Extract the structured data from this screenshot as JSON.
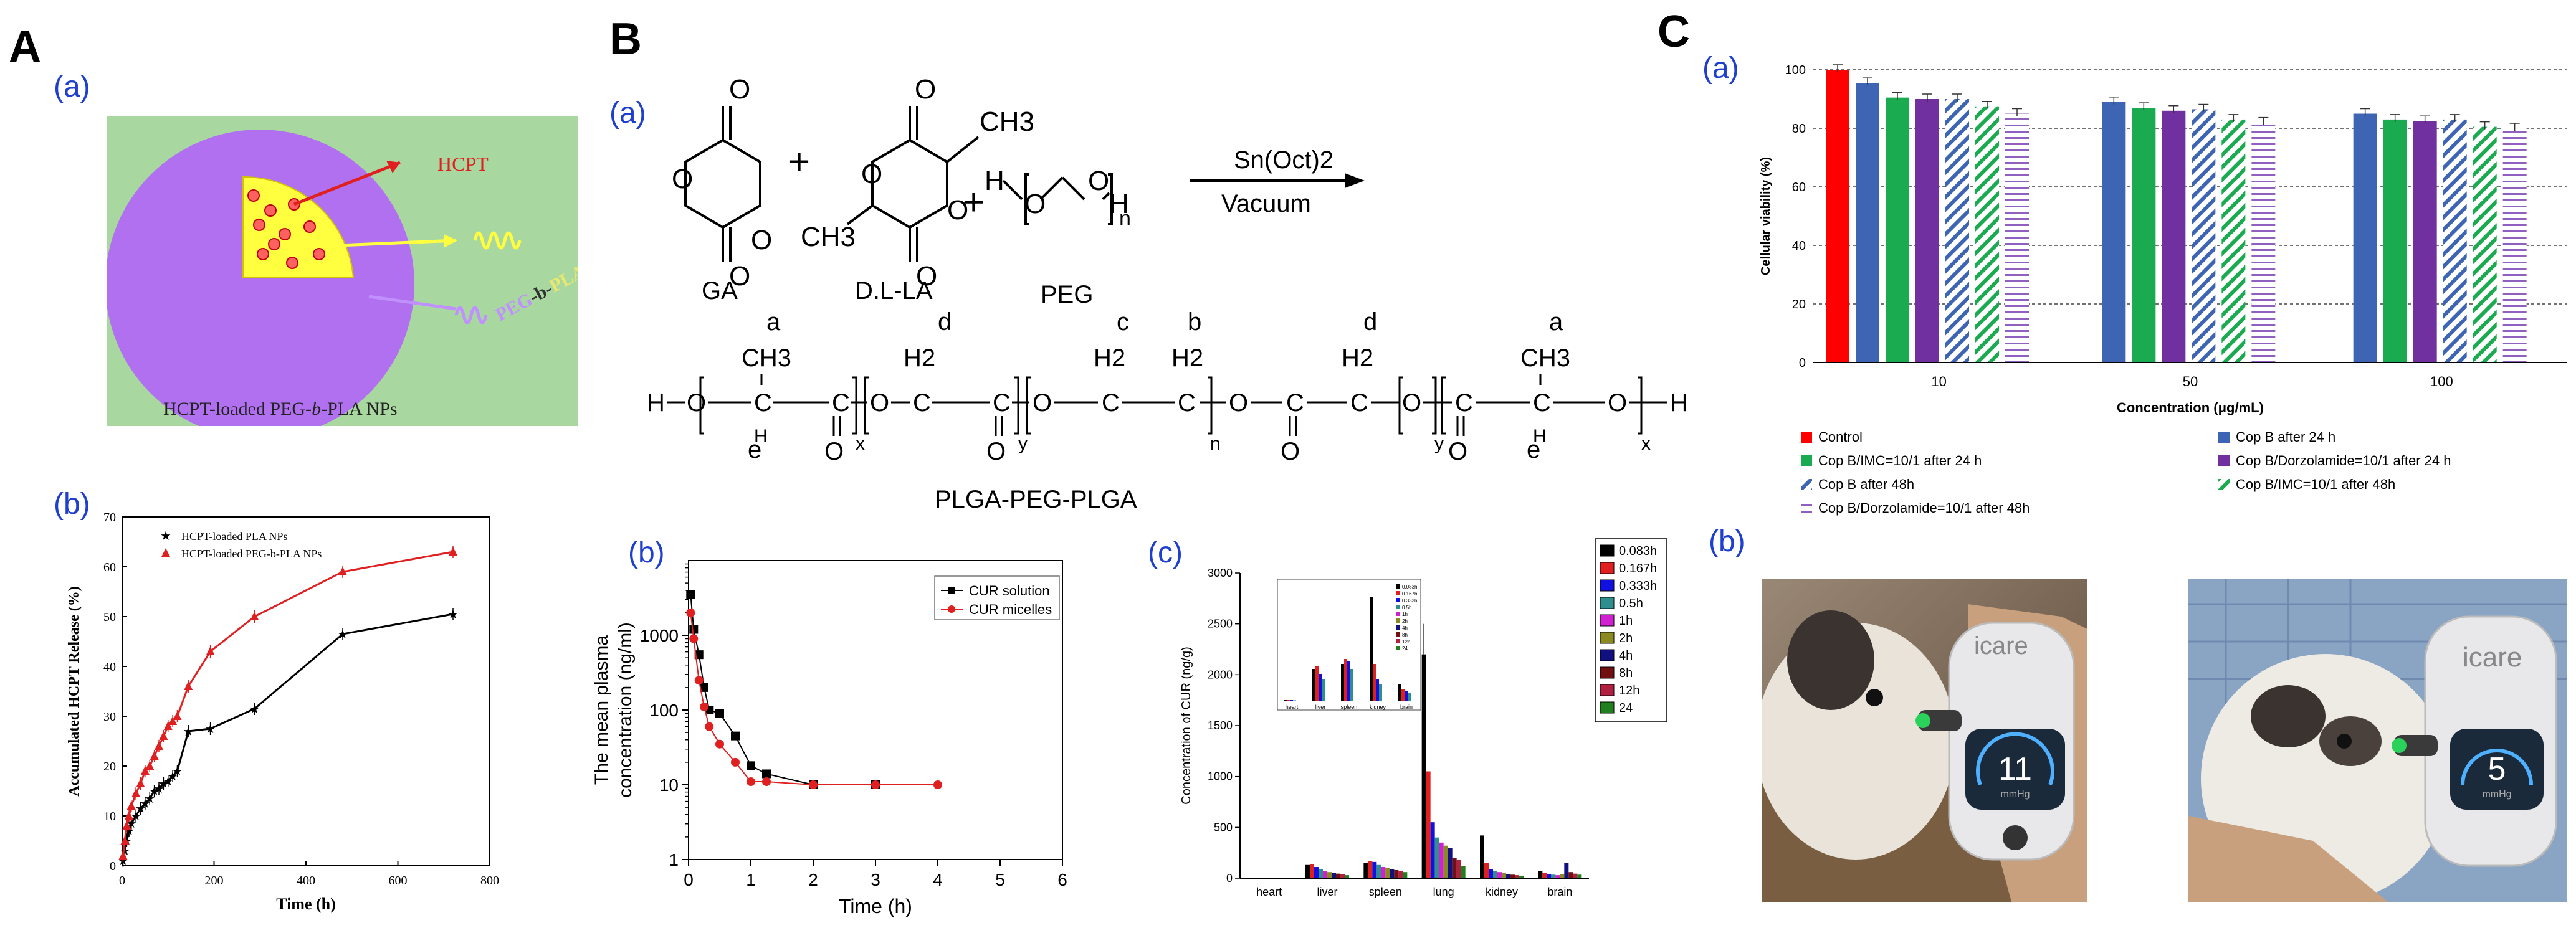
{
  "panels": {
    "A": {
      "letter": "A",
      "a_label": "(a)",
      "b_label": "(b)"
    },
    "B": {
      "letter": "B",
      "a_label": "(a)",
      "b_label": "(b)",
      "c_label": "(c)"
    },
    "C": {
      "letter": "C",
      "a_label": "(a)",
      "b_label": "(b)"
    }
  },
  "schematic": {
    "drug_label": "HCPT",
    "polymer_label_1": "PEG",
    "polymer_label_2": "-b-",
    "polymer_label_3": "PLA",
    "caption_1": "HCPT-loaded PEG-",
    "caption_2": "b",
    "caption_3": "-PLA NPs"
  },
  "synthesis": {
    "monomer_1": "GA",
    "monomer_2": "D.L-LA",
    "monomer_3": "PEG",
    "plus": "+",
    "catalyst": "Sn(Oct)2",
    "condition": "Vacuum",
    "product": "PLGA-PEG-PLGA",
    "peg_end_h": "H",
    "peg_o": "O",
    "peg_n": "n",
    "peak_a": "a",
    "peak_b": "b",
    "peak_c": "c",
    "peak_d": "d",
    "peak_e": "e",
    "ch3": "CH3",
    "h2": "H2",
    "h": "H",
    "o": "O",
    "c": "C",
    "sub_x": "x",
    "sub_y": "y",
    "sub_n": "n"
  },
  "chart_data": [
    {
      "id": "release",
      "type": "scatter",
      "xlabel": "Time (h)",
      "ylabel": "Accumulated HCPT Release (%)",
      "xlim": [
        0,
        800
      ],
      "ylim": [
        0,
        70
      ],
      "xticks": [
        "0",
        "200",
        "400",
        "600",
        "800"
      ],
      "yticks": [
        "0",
        "10",
        "20",
        "30",
        "40",
        "50",
        "60",
        "70"
      ],
      "series": [
        {
          "name": "HCPT-loaded PLA NPs",
          "color": "#000000",
          "marker": "star",
          "x": [
            2,
            6,
            10,
            15,
            20,
            30,
            40,
            50,
            60,
            70,
            80,
            90,
            100,
            110,
            120,
            144,
            192,
            288,
            480,
            720
          ],
          "y": [
            1,
            3,
            5,
            7,
            8.5,
            10,
            11.5,
            12.5,
            13.5,
            15,
            15.5,
            16.5,
            17,
            18,
            19,
            27,
            27.5,
            31.5,
            46.5,
            50.5
          ]
        },
        {
          "name": "HCPT-loaded PEG-b-PLA NPs",
          "color": "#e02020",
          "marker": "triangle",
          "x": [
            2,
            6,
            10,
            15,
            20,
            30,
            40,
            50,
            60,
            70,
            80,
            90,
            100,
            110,
            120,
            144,
            192,
            288,
            480,
            720
          ],
          "y": [
            2,
            5,
            8,
            10,
            12,
            14.5,
            16.5,
            19,
            20,
            22,
            24,
            26,
            28,
            29,
            30,
            36,
            43,
            50,
            59,
            63
          ]
        }
      ]
    },
    {
      "id": "plasma",
      "type": "line",
      "xlabel": "Time (h)",
      "ylabel": "The mean plasma concentration (ng/ml)",
      "ylabel_line1": "The mean plasma",
      "ylabel_line2": "concentration (ng/ml)",
      "xlim": [
        0,
        6
      ],
      "ylim": [
        1,
        10000
      ],
      "yscale": "log",
      "xticks": [
        "0",
        "1",
        "2",
        "3",
        "4",
        "5",
        "6"
      ],
      "yticks": [
        "1",
        "10",
        "100",
        "1000"
      ],
      "series": [
        {
          "name": "CUR solution",
          "color": "#000000",
          "marker": "square",
          "x": [
            0.033,
            0.083,
            0.167,
            0.25,
            0.333,
            0.5,
            0.75,
            1,
            1.25,
            2,
            3
          ],
          "y": [
            3500,
            1200,
            550,
            200,
            100,
            90,
            45,
            18,
            14,
            10,
            10
          ]
        },
        {
          "name": "CUR micelles",
          "color": "#e02020",
          "marker": "circle",
          "x": [
            0.033,
            0.083,
            0.167,
            0.25,
            0.333,
            0.5,
            0.75,
            1,
            1.25,
            2,
            3,
            4
          ],
          "y": [
            2000,
            900,
            250,
            110,
            60,
            35,
            20,
            11,
            11,
            10,
            10,
            10
          ]
        }
      ]
    },
    {
      "id": "tissue",
      "type": "bar",
      "xlabel": "",
      "ylabel": "Concentration of CUR (ng/g)",
      "ylim": [
        0,
        3000
      ],
      "yticks": [
        "0",
        "500",
        "1000",
        "1500",
        "2000",
        "2500",
        "3000"
      ],
      "categories": [
        "heart",
        "liver",
        "spleen",
        "lung",
        "kidney",
        "brain"
      ],
      "legend": [
        "0.083h",
        "0.167h",
        "0.333h",
        "0.5h",
        "1h",
        "2h",
        "4h",
        "8h",
        "12h",
        "24"
      ],
      "colors": [
        "#000000",
        "#e02020",
        "#1010e0",
        "#2f8f8f",
        "#d020d0",
        "#8a8a20",
        "#101080",
        "#701010",
        "#b02040",
        "#208020"
      ],
      "series": [
        {
          "name": "0.083h",
          "values": [
            5,
            130,
            150,
            2200,
            420,
            70
          ]
        },
        {
          "name": "0.167h",
          "values": [
            5,
            140,
            170,
            1050,
            150,
            50
          ]
        },
        {
          "name": "0.333h",
          "values": [
            5,
            110,
            160,
            550,
            90,
            40
          ]
        },
        {
          "name": "0.5h",
          "values": [
            4,
            90,
            130,
            400,
            70,
            35
          ]
        },
        {
          "name": "1h",
          "values": [
            4,
            70,
            110,
            350,
            60,
            30
          ]
        },
        {
          "name": "2h",
          "values": [
            3,
            60,
            100,
            320,
            50,
            40
          ]
        },
        {
          "name": "4h",
          "values": [
            3,
            50,
            90,
            300,
            40,
            150
          ]
        },
        {
          "name": "8h",
          "values": [
            3,
            45,
            80,
            200,
            35,
            60
          ]
        },
        {
          "name": "12h",
          "values": [
            2,
            40,
            70,
            180,
            30,
            45
          ]
        },
        {
          "name": "24",
          "values": [
            2,
            30,
            60,
            120,
            25,
            35
          ]
        }
      ],
      "inset_categories": [
        "heart",
        "liver",
        "spleen",
        "kidney",
        "brain"
      ],
      "inset_legend": [
        "0.083h",
        "0.167h",
        "0.333h",
        "0.5h",
        "1h",
        "2h",
        "4h",
        "8h",
        "12h",
        "24"
      ]
    },
    {
      "id": "viability",
      "type": "bar",
      "xlabel": "Concentration (μg/mL)",
      "ylabel": "Cellular viability (%)",
      "ylim": [
        0,
        100
      ],
      "yticks": [
        "0",
        "20",
        "40",
        "60",
        "80",
        "100"
      ],
      "categories": [
        "10",
        "50",
        "100"
      ],
      "grid": "horizontal dashed",
      "series": [
        {
          "name": "Control",
          "color": "#ff0000",
          "pattern": "solid",
          "values": [
            100,
            null,
            null
          ]
        },
        {
          "name": "Cop B after 24 h",
          "color": "#3e64b4",
          "pattern": "solid",
          "values": [
            95.5,
            89,
            85
          ]
        },
        {
          "name": "Cop B/IMC=10/1 after 24 h",
          "color": "#1aaa50",
          "pattern": "solid",
          "values": [
            90.5,
            87,
            83
          ]
        },
        {
          "name": "Cop B/Dorzolamide=10/1 after 24 h",
          "color": "#7030a0",
          "pattern": "solid",
          "values": [
            90,
            86,
            82.5
          ]
        },
        {
          "name": "Cop B after 48h",
          "color": "#3e64b4",
          "pattern": "diagonal",
          "values": [
            90,
            86.5,
            83
          ]
        },
        {
          "name": "Cop B/IMC=10/1 after 48h",
          "color": "#1aaa50",
          "pattern": "diagonal",
          "values": [
            87.5,
            83,
            80.5
          ]
        },
        {
          "name": "Cop B/Dorzolamide=10/1 after 48h",
          "color": "#9060c0",
          "pattern": "horizontal",
          "values": [
            85,
            82,
            80
          ]
        }
      ]
    }
  ],
  "photos": {
    "device_brand": "icare",
    "left_reading": "11",
    "left_unit": "mmHg",
    "right_reading": "5",
    "right_unit": "mmHg"
  }
}
